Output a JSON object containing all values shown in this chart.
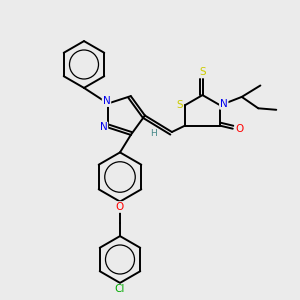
{
  "background_color": "#ebebeb",
  "atom_colors": {
    "N": "#0000ee",
    "O": "#ff0000",
    "S": "#cccc00",
    "Cl": "#00aa00",
    "C": "#000000",
    "H": "#448888"
  },
  "bond_lw": 1.4,
  "font_size": 7.5
}
